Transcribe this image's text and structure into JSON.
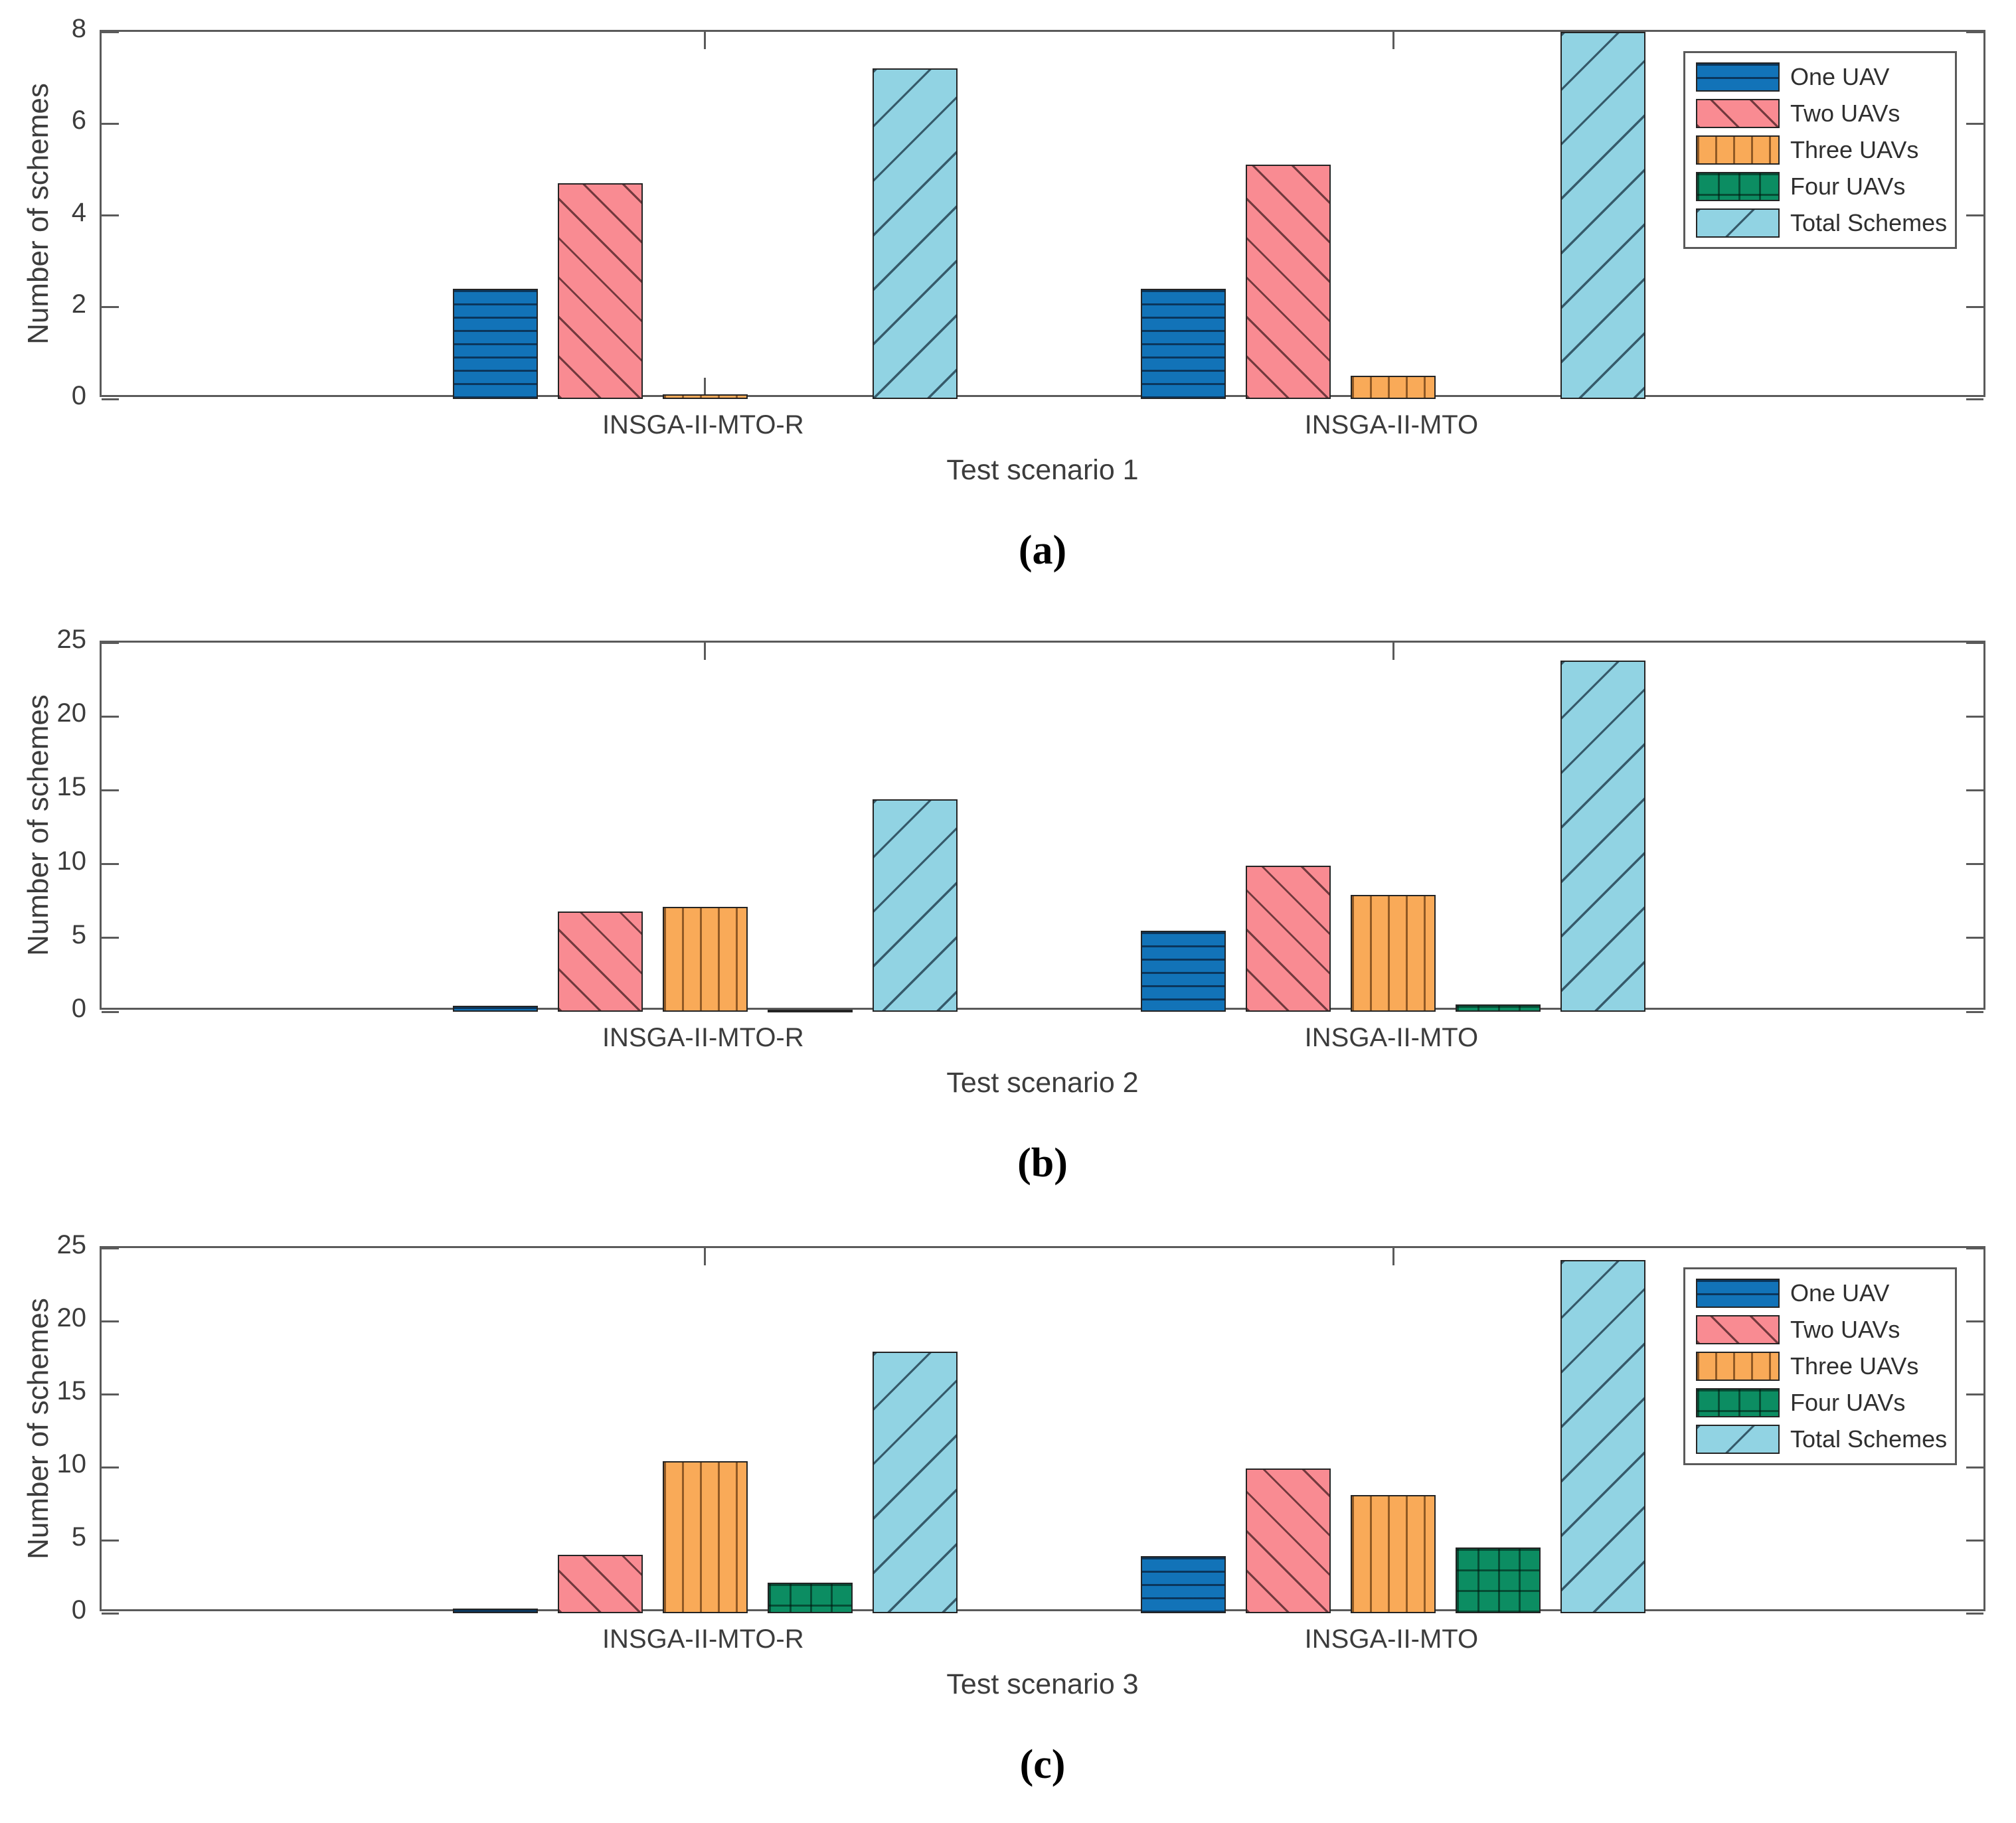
{
  "figure": {
    "background": "#ffffff",
    "axis_color": "#5a5a5a",
    "text_color": "#3c3c3c",
    "series_names": [
      "One UAV",
      "Two UAVs",
      "Three UAVs",
      "Four UAVs",
      "Total Schemes"
    ],
    "series_styles": [
      {
        "name": "One UAV",
        "fill": "#1273b8",
        "hatch": "horizontal"
      },
      {
        "name": "Two UAVs",
        "fill": "#f98b92",
        "hatch": "diagonal-backslash"
      },
      {
        "name": "Three UAVs",
        "fill": "#f9aa58",
        "hatch": "vertical"
      },
      {
        "name": "Four UAVs",
        "fill": "#0c8d62",
        "hatch": "cross-grid"
      },
      {
        "name": "Total Schemes",
        "fill": "#91d3e3",
        "hatch": "diagonal-forwardslash"
      }
    ]
  },
  "chart_data": [
    {
      "type": "bar",
      "caption": "(a)",
      "xlabel": "Test scenario 1",
      "ylabel": "Number of schemes",
      "ylim": [
        0,
        8
      ],
      "yticks": [
        0,
        2,
        4,
        6,
        8
      ],
      "grid": false,
      "categories": [
        "INSGA-II-MTO-R",
        "INSGA-II-MTO"
      ],
      "series": [
        {
          "name": "One UAV",
          "values": [
            2.4,
            2.4
          ]
        },
        {
          "name": "Two UAVs",
          "values": [
            4.7,
            5.1
          ]
        },
        {
          "name": "Three UAVs",
          "values": [
            0.1,
            0.5
          ]
        },
        {
          "name": "Four UAVs",
          "values": [
            0,
            0
          ]
        },
        {
          "name": "Total Schemes",
          "values": [
            7.2,
            8.0
          ]
        }
      ],
      "legend": {
        "visible": true,
        "position": "top-right",
        "entries": [
          "One UAV",
          "Two UAVs",
          "Three UAVs",
          "Four UAVs",
          "Total Schemes"
        ]
      }
    },
    {
      "type": "bar",
      "caption": "(b)",
      "xlabel": "Test scenario 2",
      "ylabel": "Number of schemes",
      "ylim": [
        0,
        25
      ],
      "yticks": [
        0,
        5,
        10,
        15,
        20,
        25
      ],
      "grid": false,
      "categories": [
        "INSGA-II-MTO-R",
        "INSGA-II-MTO"
      ],
      "series": [
        {
          "name": "One UAV",
          "values": [
            0.4,
            5.5
          ]
        },
        {
          "name": "Two UAVs",
          "values": [
            6.8,
            9.9
          ]
        },
        {
          "name": "Three UAVs",
          "values": [
            7.1,
            7.9
          ]
        },
        {
          "name": "Four UAVs",
          "values": [
            0.15,
            0.5
          ]
        },
        {
          "name": "Total Schemes",
          "values": [
            14.4,
            23.8
          ]
        }
      ],
      "legend": {
        "visible": false,
        "position": null,
        "entries": []
      }
    },
    {
      "type": "bar",
      "caption": "(c)",
      "xlabel": "Test scenario 3",
      "ylabel": "Number of schemes",
      "ylim": [
        0,
        25
      ],
      "yticks": [
        0,
        5,
        10,
        15,
        20,
        25
      ],
      "grid": false,
      "categories": [
        "INSGA-II-MTO-R",
        "INSGA-II-MTO"
      ],
      "series": [
        {
          "name": "One UAV",
          "values": [
            0.3,
            3.9
          ]
        },
        {
          "name": "Two UAVs",
          "values": [
            4.0,
            9.9
          ]
        },
        {
          "name": "Three UAVs",
          "values": [
            10.4,
            8.1
          ]
        },
        {
          "name": "Four UAVs",
          "values": [
            2.1,
            4.5
          ]
        },
        {
          "name": "Total Schemes",
          "values": [
            17.9,
            24.2
          ]
        }
      ],
      "legend": {
        "visible": true,
        "position": "top-right",
        "entries": [
          "One UAV",
          "Two UAVs",
          "Three UAVs",
          "Four UAVs",
          "Total Schemes"
        ]
      }
    }
  ]
}
